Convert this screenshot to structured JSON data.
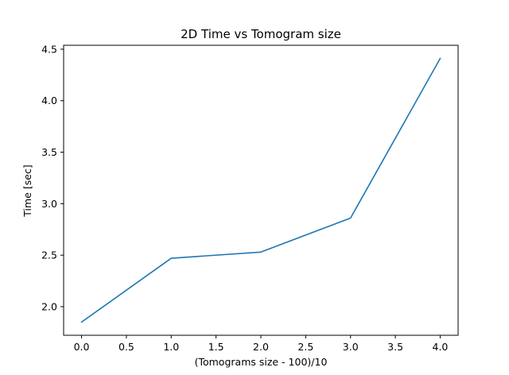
{
  "chart_data": {
    "type": "line",
    "title": "2D Time vs Tomogram size",
    "xlabel": "(Tomograms size - 100)/10",
    "ylabel": "Time [sec]",
    "x": [
      0,
      1,
      2,
      3,
      4
    ],
    "series": [
      {
        "values": [
          1.85,
          2.47,
          2.53,
          2.86,
          4.41
        ],
        "color": "#1f77b4"
      }
    ],
    "xlim": [
      -0.2,
      4.2
    ],
    "ylim": [
      1.722,
      4.538
    ],
    "xticks": [
      0.0,
      0.5,
      1.0,
      1.5,
      2.0,
      2.5,
      3.0,
      3.5,
      4.0
    ],
    "xtick_labels": [
      "0.0",
      "0.5",
      "1.0",
      "1.5",
      "2.0",
      "2.5",
      "3.0",
      "3.5",
      "4.0"
    ],
    "yticks": [
      2.0,
      2.5,
      3.0,
      3.5,
      4.0,
      4.5
    ],
    "ytick_labels": [
      "2.0",
      "2.5",
      "3.0",
      "3.5",
      "4.0",
      "4.5"
    ],
    "grid": false,
    "legend": "none"
  }
}
